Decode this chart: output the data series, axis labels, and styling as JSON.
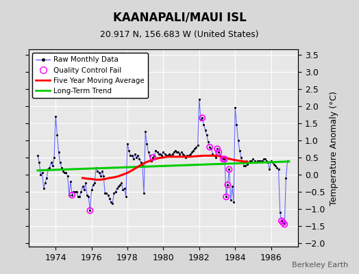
{
  "title": "KAANAPALI/MAUI ISL",
  "subtitle": "20.917 N, 156.683 W (United States)",
  "ylabel": "Temperature Anomaly (°C)",
  "watermark": "Berkeley Earth",
  "xlim": [
    1972.5,
    1987.5
  ],
  "ylim": [
    -2.1,
    3.65
  ],
  "yticks": [
    -2,
    -1.5,
    -1,
    -0.5,
    0,
    0.5,
    1,
    1.5,
    2,
    2.5,
    3,
    3.5
  ],
  "xticks": [
    1974,
    1976,
    1978,
    1980,
    1982,
    1984,
    1986
  ],
  "bg_color": "#d8d8d8",
  "plot_bg_color": "#e8e8e8",
  "grid_color": "white",
  "raw_color": "#6666ff",
  "ma_color": "red",
  "trend_color": "#00cc00",
  "qc_color": "magenta",
  "raw_data": [
    [
      1973.0,
      0.55
    ],
    [
      1973.083,
      0.35
    ],
    [
      1973.167,
      0.0
    ],
    [
      1973.25,
      0.05
    ],
    [
      1973.333,
      -0.4
    ],
    [
      1973.417,
      -0.25
    ],
    [
      1973.5,
      -0.1
    ],
    [
      1973.583,
      0.15
    ],
    [
      1973.667,
      0.2
    ],
    [
      1973.75,
      0.35
    ],
    [
      1973.833,
      0.25
    ],
    [
      1973.917,
      0.5
    ],
    [
      1974.0,
      1.7
    ],
    [
      1974.083,
      1.15
    ],
    [
      1974.167,
      0.65
    ],
    [
      1974.25,
      0.35
    ],
    [
      1974.333,
      0.2
    ],
    [
      1974.417,
      0.1
    ],
    [
      1974.5,
      0.05
    ],
    [
      1974.583,
      0.05
    ],
    [
      1974.667,
      -0.05
    ],
    [
      1974.75,
      -0.6
    ],
    [
      1974.833,
      -0.2
    ],
    [
      1974.917,
      -0.6
    ],
    [
      1975.0,
      -0.5
    ],
    [
      1975.083,
      -0.5
    ],
    [
      1975.167,
      -0.5
    ],
    [
      1975.25,
      -0.65
    ],
    [
      1975.333,
      -0.65
    ],
    [
      1975.417,
      -0.5
    ],
    [
      1975.5,
      -0.35
    ],
    [
      1975.583,
      -0.45
    ],
    [
      1975.667,
      -0.25
    ],
    [
      1975.75,
      -0.6
    ],
    [
      1975.833,
      -0.65
    ],
    [
      1975.917,
      -1.05
    ],
    [
      1976.0,
      -0.45
    ],
    [
      1976.083,
      -0.3
    ],
    [
      1976.167,
      -0.25
    ],
    [
      1976.25,
      0.2
    ],
    [
      1976.333,
      0.1
    ],
    [
      1976.417,
      0.05
    ],
    [
      1976.5,
      -0.05
    ],
    [
      1976.583,
      0.1
    ],
    [
      1976.667,
      -0.05
    ],
    [
      1976.75,
      -0.55
    ],
    [
      1976.833,
      -0.55
    ],
    [
      1976.917,
      -0.6
    ],
    [
      1977.0,
      -0.7
    ],
    [
      1977.083,
      -0.8
    ],
    [
      1977.167,
      -0.85
    ],
    [
      1977.25,
      -0.55
    ],
    [
      1977.333,
      -0.5
    ],
    [
      1977.417,
      -0.4
    ],
    [
      1977.5,
      -0.35
    ],
    [
      1977.583,
      -0.3
    ],
    [
      1977.667,
      -0.25
    ],
    [
      1977.75,
      -0.45
    ],
    [
      1977.833,
      -0.4
    ],
    [
      1977.917,
      -0.65
    ],
    [
      1978.0,
      0.9
    ],
    [
      1978.083,
      0.7
    ],
    [
      1978.167,
      0.55
    ],
    [
      1978.25,
      0.55
    ],
    [
      1978.333,
      0.45
    ],
    [
      1978.417,
      0.6
    ],
    [
      1978.5,
      0.5
    ],
    [
      1978.583,
      0.55
    ],
    [
      1978.667,
      0.45
    ],
    [
      1978.75,
      0.35
    ],
    [
      1978.833,
      0.25
    ],
    [
      1978.917,
      -0.55
    ],
    [
      1979.0,
      1.25
    ],
    [
      1979.083,
      0.9
    ],
    [
      1979.167,
      0.65
    ],
    [
      1979.25,
      0.55
    ],
    [
      1979.333,
      0.4
    ],
    [
      1979.417,
      0.5
    ],
    [
      1979.5,
      0.55
    ],
    [
      1979.583,
      0.7
    ],
    [
      1979.667,
      0.65
    ],
    [
      1979.75,
      0.6
    ],
    [
      1979.833,
      0.6
    ],
    [
      1979.917,
      0.55
    ],
    [
      1980.0,
      0.65
    ],
    [
      1980.083,
      0.6
    ],
    [
      1980.167,
      0.55
    ],
    [
      1980.25,
      0.55
    ],
    [
      1980.333,
      0.6
    ],
    [
      1980.417,
      0.55
    ],
    [
      1980.5,
      0.6
    ],
    [
      1980.583,
      0.65
    ],
    [
      1980.667,
      0.7
    ],
    [
      1980.75,
      0.65
    ],
    [
      1980.833,
      0.65
    ],
    [
      1980.917,
      0.6
    ],
    [
      1981.0,
      0.65
    ],
    [
      1981.083,
      0.6
    ],
    [
      1981.167,
      0.55
    ],
    [
      1981.25,
      0.5
    ],
    [
      1981.333,
      0.55
    ],
    [
      1981.417,
      0.55
    ],
    [
      1981.5,
      0.6
    ],
    [
      1981.583,
      0.65
    ],
    [
      1981.667,
      0.7
    ],
    [
      1981.75,
      0.75
    ],
    [
      1981.833,
      0.8
    ],
    [
      1981.917,
      0.85
    ],
    [
      1982.0,
      2.2
    ],
    [
      1982.083,
      1.6
    ],
    [
      1982.167,
      1.65
    ],
    [
      1982.25,
      1.45
    ],
    [
      1982.333,
      1.3
    ],
    [
      1982.417,
      1.15
    ],
    [
      1982.5,
      0.95
    ],
    [
      1982.583,
      0.8
    ],
    [
      1982.667,
      0.75
    ],
    [
      1982.75,
      0.6
    ],
    [
      1982.833,
      0.55
    ],
    [
      1982.917,
      0.5
    ],
    [
      1983.0,
      0.75
    ],
    [
      1983.083,
      0.65
    ],
    [
      1983.167,
      0.55
    ],
    [
      1983.25,
      0.5
    ],
    [
      1983.333,
      0.45
    ],
    [
      1983.417,
      0.45
    ],
    [
      1983.5,
      -0.65
    ],
    [
      1983.583,
      -0.3
    ],
    [
      1983.667,
      0.15
    ],
    [
      1983.75,
      -0.75
    ],
    [
      1983.833,
      -0.35
    ],
    [
      1983.917,
      -0.8
    ],
    [
      1984.0,
      1.95
    ],
    [
      1984.083,
      1.45
    ],
    [
      1984.167,
      1.0
    ],
    [
      1984.25,
      0.7
    ],
    [
      1984.333,
      0.5
    ],
    [
      1984.417,
      0.35
    ],
    [
      1984.5,
      0.25
    ],
    [
      1984.583,
      0.25
    ],
    [
      1984.667,
      0.3
    ],
    [
      1984.75,
      0.35
    ],
    [
      1984.833,
      0.4
    ],
    [
      1984.917,
      0.4
    ],
    [
      1985.0,
      0.45
    ],
    [
      1985.083,
      0.4
    ],
    [
      1985.167,
      0.35
    ],
    [
      1985.25,
      0.4
    ],
    [
      1985.333,
      0.4
    ],
    [
      1985.417,
      0.4
    ],
    [
      1985.5,
      0.4
    ],
    [
      1985.583,
      0.45
    ],
    [
      1985.667,
      0.45
    ],
    [
      1985.75,
      0.4
    ],
    [
      1985.833,
      0.35
    ],
    [
      1985.917,
      0.15
    ],
    [
      1986.0,
      0.4
    ],
    [
      1986.083,
      0.35
    ],
    [
      1986.167,
      0.3
    ],
    [
      1986.25,
      0.25
    ],
    [
      1986.333,
      0.2
    ],
    [
      1986.417,
      0.15
    ],
    [
      1986.5,
      -1.1
    ],
    [
      1986.583,
      -1.35
    ],
    [
      1986.667,
      -1.4
    ],
    [
      1986.75,
      -1.45
    ],
    [
      1986.833,
      -0.1
    ],
    [
      1986.917,
      0.4
    ]
  ],
  "qc_fail_points": [
    [
      1974.917,
      -0.6
    ],
    [
      1975.917,
      -1.05
    ],
    [
      1979.417,
      0.5
    ],
    [
      1982.167,
      1.65
    ],
    [
      1982.583,
      0.8
    ],
    [
      1983.0,
      0.75
    ],
    [
      1983.083,
      0.65
    ],
    [
      1983.333,
      0.45
    ],
    [
      1983.417,
      0.45
    ],
    [
      1983.5,
      -0.65
    ],
    [
      1983.583,
      -0.3
    ],
    [
      1983.667,
      0.15
    ],
    [
      1986.583,
      -1.35
    ],
    [
      1986.667,
      -1.4
    ],
    [
      1986.75,
      -1.45
    ]
  ],
  "moving_avg": [
    [
      1975.5,
      -0.1
    ],
    [
      1975.75,
      -0.12
    ],
    [
      1976.0,
      -0.13
    ],
    [
      1976.25,
      -0.15
    ],
    [
      1976.5,
      -0.15
    ],
    [
      1976.75,
      -0.13
    ],
    [
      1977.0,
      -0.1
    ],
    [
      1977.25,
      -0.08
    ],
    [
      1977.5,
      -0.05
    ],
    [
      1977.75,
      0.0
    ],
    [
      1978.0,
      0.05
    ],
    [
      1978.25,
      0.12
    ],
    [
      1978.5,
      0.2
    ],
    [
      1978.75,
      0.28
    ],
    [
      1979.0,
      0.35
    ],
    [
      1979.25,
      0.4
    ],
    [
      1979.5,
      0.45
    ],
    [
      1979.75,
      0.48
    ],
    [
      1980.0,
      0.5
    ],
    [
      1980.25,
      0.52
    ],
    [
      1980.5,
      0.52
    ],
    [
      1980.75,
      0.52
    ],
    [
      1981.0,
      0.52
    ],
    [
      1981.25,
      0.52
    ],
    [
      1981.5,
      0.52
    ],
    [
      1981.75,
      0.53
    ],
    [
      1982.0,
      0.54
    ],
    [
      1982.25,
      0.55
    ],
    [
      1982.5,
      0.55
    ],
    [
      1982.75,
      0.55
    ],
    [
      1983.0,
      0.55
    ],
    [
      1983.25,
      0.52
    ],
    [
      1983.5,
      0.48
    ],
    [
      1983.75,
      0.45
    ],
    [
      1984.0,
      0.42
    ],
    [
      1984.25,
      0.4
    ],
    [
      1984.5,
      0.38
    ],
    [
      1984.583,
      0.38
    ],
    [
      1984.667,
      0.38
    ]
  ],
  "trend_line": [
    [
      1973.0,
      0.12
    ],
    [
      1987.0,
      0.38
    ]
  ]
}
